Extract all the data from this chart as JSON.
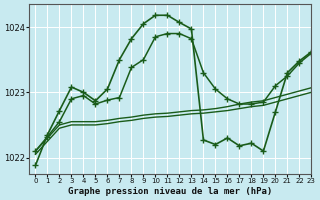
{
  "title": "Graphe pression niveau de la mer (hPa)",
  "background_color": "#c8eaf0",
  "grid_color": "#ffffff",
  "line_color": "#1a5c1a",
  "xlim": [
    -0.5,
    23
  ],
  "ylim": [
    1021.75,
    1024.35
  ],
  "yticks": [
    1022,
    1023,
    1024
  ],
  "xticks": [
    0,
    1,
    2,
    3,
    4,
    5,
    6,
    7,
    8,
    9,
    10,
    11,
    12,
    13,
    14,
    15,
    16,
    17,
    18,
    19,
    20,
    21,
    22,
    23
  ],
  "series": [
    {
      "x": [
        0,
        1,
        2,
        3,
        4,
        5,
        6,
        7,
        8,
        9,
        10,
        11,
        12,
        13,
        14,
        15,
        16,
        17,
        18,
        19,
        20,
        21,
        22,
        23
      ],
      "y": [
        1022.05,
        1022.25,
        1022.45,
        1022.5,
        1022.5,
        1022.5,
        1022.52,
        1022.55,
        1022.57,
        1022.6,
        1022.62,
        1022.63,
        1022.65,
        1022.67,
        1022.68,
        1022.7,
        1022.72,
        1022.75,
        1022.78,
        1022.8,
        1022.85,
        1022.9,
        1022.95,
        1023.0
      ],
      "marker": null,
      "linestyle": "-",
      "linewidth": 1.0
    },
    {
      "x": [
        0,
        1,
        2,
        3,
        4,
        5,
        6,
        7,
        8,
        9,
        10,
        11,
        12,
        13,
        14,
        15,
        16,
        17,
        18,
        19,
        20,
        21,
        22,
        23
      ],
      "y": [
        1022.1,
        1022.3,
        1022.5,
        1022.55,
        1022.55,
        1022.55,
        1022.57,
        1022.6,
        1022.62,
        1022.65,
        1022.67,
        1022.68,
        1022.7,
        1022.72,
        1022.73,
        1022.75,
        1022.78,
        1022.82,
        1022.85,
        1022.87,
        1022.92,
        1022.97,
        1023.02,
        1023.07
      ],
      "marker": null,
      "linestyle": "-",
      "linewidth": 1.0
    },
    {
      "x": [
        0,
        1,
        2,
        3,
        4,
        5,
        6,
        7,
        8,
        9,
        10,
        11,
        12,
        13,
        14,
        15,
        16,
        17,
        18,
        19,
        20,
        21,
        22,
        23
      ],
      "y": [
        1022.1,
        1022.32,
        1022.55,
        1022.9,
        1022.95,
        1022.82,
        1022.88,
        1022.92,
        1023.38,
        1023.5,
        1023.85,
        1023.9,
        1023.9,
        1023.82,
        1023.3,
        1023.05,
        1022.9,
        1022.82,
        1022.82,
        1022.85,
        1023.1,
        1023.25,
        1023.45,
        1023.6
      ],
      "marker": "+",
      "linestyle": "-",
      "linewidth": 1.1
    },
    {
      "x": [
        0,
        1,
        2,
        3,
        4,
        5,
        6,
        7,
        8,
        9,
        10,
        11,
        12,
        13,
        14,
        15,
        16,
        17,
        18,
        19,
        20,
        21,
        22,
        23
      ],
      "y": [
        1021.88,
        1022.35,
        1022.72,
        1023.08,
        1023.0,
        1022.87,
        1023.05,
        1023.5,
        1023.82,
        1024.05,
        1024.18,
        1024.18,
        1024.07,
        1023.97,
        1022.27,
        1022.2,
        1022.3,
        1022.18,
        1022.22,
        1022.1,
        1022.7,
        1023.3,
        1023.48,
        1023.62
      ],
      "marker": "+",
      "linestyle": "-",
      "linewidth": 1.2
    }
  ]
}
